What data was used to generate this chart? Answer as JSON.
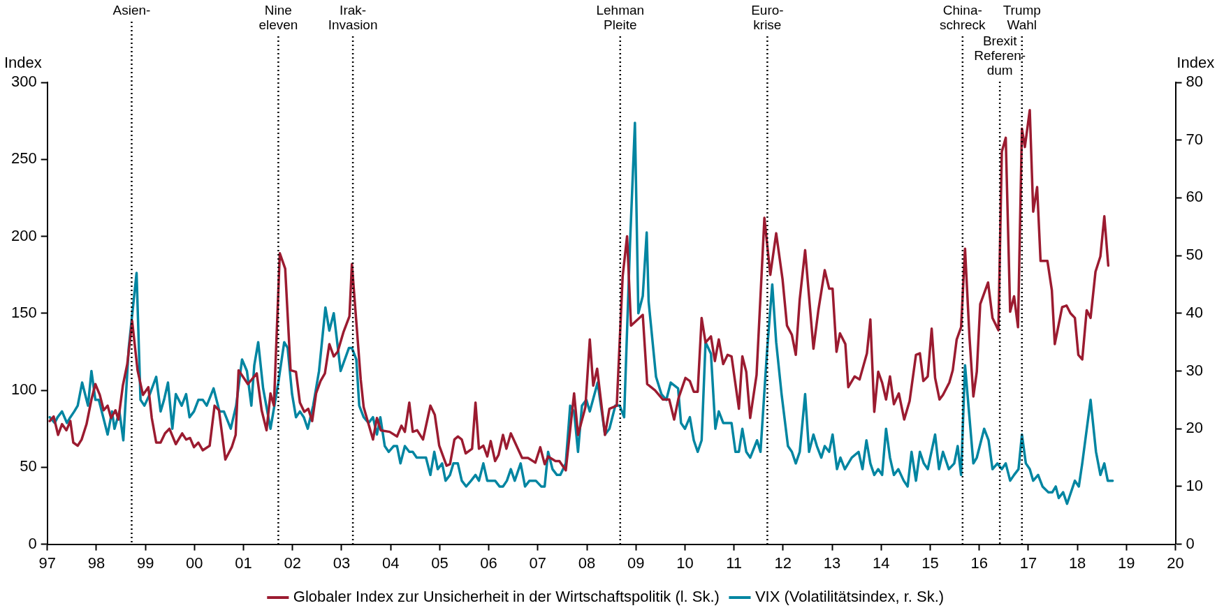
{
  "chart_data": {
    "type": "line",
    "ylabel": "Index",
    "y2label": "Index",
    "xlim": [
      1997,
      2020
    ],
    "xticks": [
      {
        "value": 1997,
        "label": "97"
      },
      {
        "value": 1998,
        "label": "98"
      },
      {
        "value": 1999,
        "label": "99"
      },
      {
        "value": 2000,
        "label": "00"
      },
      {
        "value": 2001,
        "label": "01"
      },
      {
        "value": 2002,
        "label": "02"
      },
      {
        "value": 2003,
        "label": "03"
      },
      {
        "value": 2004,
        "label": "04"
      },
      {
        "value": 2005,
        "label": "05"
      },
      {
        "value": 2006,
        "label": "06"
      },
      {
        "value": 2007,
        "label": "07"
      },
      {
        "value": 2008,
        "label": "08"
      },
      {
        "value": 2009,
        "label": "09"
      },
      {
        "value": 2010,
        "label": "10"
      },
      {
        "value": 2011,
        "label": "11"
      },
      {
        "value": 2012,
        "label": "12"
      },
      {
        "value": 2013,
        "label": "13"
      },
      {
        "value": 2014,
        "label": "14"
      },
      {
        "value": 2015,
        "label": "15"
      },
      {
        "value": 2016,
        "label": "16"
      },
      {
        "value": 2017,
        "label": "17"
      },
      {
        "value": 2018,
        "label": "18"
      },
      {
        "value": 2019,
        "label": "19"
      },
      {
        "value": 2020,
        "label": "20"
      }
    ],
    "ylim": [
      0,
      300
    ],
    "yticks": [
      0,
      50,
      100,
      150,
      200,
      250,
      300
    ],
    "y2lim": [
      0,
      80
    ],
    "y2ticks": [
      0,
      10,
      20,
      30,
      40,
      50,
      60,
      70,
      80
    ],
    "grid": false,
    "legend": "bottom",
    "series": [
      {
        "name": "Globaler Index zur Unsicherheit in der Wirtschaftspolitik (l. Sk.)",
        "color": "#9b1b30",
        "x": [
          1997.05,
          1997.13,
          1997.22,
          1997.3,
          1997.39,
          1997.47,
          1997.53,
          1997.62,
          1997.7,
          1997.8,
          1997.9,
          1997.98,
          1998.07,
          1998.15,
          1998.23,
          1998.3,
          1998.39,
          1998.45,
          1998.54,
          1998.63,
          1998.73,
          1998.84,
          1998.95,
          1999.06,
          1999.13,
          1999.22,
          1999.31,
          1999.4,
          1999.49,
          1999.62,
          1999.75,
          1999.83,
          1999.91,
          1999.99,
          2000.08,
          2000.17,
          2000.31,
          2000.41,
          2000.5,
          2000.63,
          2000.76,
          2000.84,
          2000.9,
          2001.09,
          2001.27,
          2001.37,
          2001.47,
          2001.55,
          2001.62,
          2001.74,
          2001.85,
          2001.96,
          2002.07,
          2002.15,
          2002.24,
          2002.32,
          2002.4,
          2002.48,
          2002.57,
          2002.66,
          2002.75,
          2002.84,
          2002.92,
          2003.04,
          2003.16,
          2003.21,
          2003.39,
          2003.45,
          2003.64,
          2003.72,
          2003.8,
          2003.98,
          2004.13,
          2004.22,
          2004.29,
          2004.38,
          2004.45,
          2004.54,
          2004.66,
          2004.81,
          2004.9,
          2004.99,
          2005.14,
          2005.21,
          2005.3,
          2005.37,
          2005.45,
          2005.53,
          2005.66,
          2005.73,
          2005.8,
          2005.89,
          2005.97,
          2006.04,
          2006.13,
          2006.2,
          2006.29,
          2006.36,
          2006.45,
          2006.68,
          2006.8,
          2006.95,
          2007.05,
          2007.14,
          2007.21,
          2007.36,
          2007.44,
          2007.57,
          2007.74,
          2007.82,
          2007.97,
          2008.06,
          2008.13,
          2008.21,
          2008.37,
          2008.46,
          2008.61,
          2008.73,
          2008.82,
          2008.9,
          2009.14,
          2009.23,
          2009.39,
          2009.55,
          2009.68,
          2009.78,
          2009.87,
          2010.01,
          2010.1,
          2010.18,
          2010.26,
          2010.34,
          2010.42,
          2010.53,
          2010.61,
          2010.69,
          2010.78,
          2010.87,
          2010.95,
          2011.1,
          2011.17,
          2011.25,
          2011.33,
          2011.46,
          2011.62,
          2011.74,
          2011.86,
          2011.99,
          2012.08,
          2012.18,
          2012.26,
          2012.34,
          2012.45,
          2012.53,
          2012.62,
          2012.72,
          2012.85,
          2012.94,
          2013.01,
          2013.09,
          2013.16,
          2013.27,
          2013.33,
          2013.46,
          2013.56,
          2013.71,
          2013.78,
          2013.86,
          2013.94,
          2014.02,
          2014.1,
          2014.18,
          2014.26,
          2014.36,
          2014.47,
          2014.58,
          2014.71,
          2014.79,
          2014.86,
          2014.95,
          2015.03,
          2015.1,
          2015.19,
          2015.26,
          2015.39,
          2015.46,
          2015.54,
          2015.63,
          2015.71,
          2015.8,
          2015.88,
          2015.95,
          2016.02,
          2016.18,
          2016.27,
          2016.39,
          2016.46,
          2016.54,
          2016.63,
          2016.71,
          2016.79,
          2016.87,
          2016.93,
          2017.03,
          2017.1,
          2017.18,
          2017.25,
          2017.39,
          2017.48,
          2017.54,
          2017.69,
          2017.78,
          2017.86,
          2017.95,
          2018.02,
          2018.1,
          2018.19,
          2018.27,
          2018.37,
          2018.47,
          2018.55,
          2018.63
        ],
        "values": [
          80,
          83,
          71,
          78,
          74,
          80,
          66,
          64,
          68,
          78,
          94,
          104,
          97,
          87,
          90,
          82,
          87,
          81,
          103,
          117,
          145,
          113,
          97,
          102,
          82,
          66,
          66,
          72,
          75,
          65,
          72,
          68,
          69,
          63,
          66,
          61,
          64,
          90,
          87,
          55,
          63,
          71,
          113,
          104,
          111,
          87,
          74,
          98,
          90,
          189,
          179,
          113,
          112,
          92,
          86,
          88,
          80,
          98,
          106,
          111,
          130,
          122,
          125,
          138,
          148,
          182,
          107,
          89,
          68,
          82,
          74,
          73,
          70,
          77,
          73,
          92,
          73,
          74,
          68,
          90,
          84,
          64,
          51,
          52,
          68,
          70,
          68,
          59,
          62,
          92,
          62,
          64,
          57,
          67,
          54,
          58,
          71,
          62,
          72,
          56,
          56,
          53,
          63,
          52,
          57,
          54,
          54,
          48,
          98,
          71,
          89,
          133,
          103,
          114,
          71,
          88,
          90,
          174,
          200,
          142,
          149,
          104,
          100,
          94,
          94,
          81,
          95,
          108,
          106,
          99,
          99,
          147,
          131,
          135,
          119,
          133,
          117,
          123,
          122,
          88,
          122,
          112,
          82,
          110,
          212,
          175,
          202,
          172,
          142,
          136,
          123,
          159,
          191,
          161,
          127,
          152,
          178,
          166,
          166,
          125,
          137,
          130,
          102,
          109,
          107,
          124,
          146,
          86,
          112,
          105,
          94,
          109,
          91,
          98,
          81,
          93,
          123,
          124,
          106,
          109,
          140,
          108,
          94,
          97,
          105,
          113,
          133,
          141,
          192,
          135,
          96,
          112,
          156,
          170,
          147,
          139,
          255,
          264,
          151,
          161,
          141,
          270,
          258,
          282,
          216,
          232,
          184,
          184,
          165,
          130,
          154,
          155,
          150,
          147,
          123,
          120,
          152,
          147,
          177,
          187,
          213,
          181
        ]
      },
      {
        "name": "VIX (Volatilitätsindex, r. Sk.)",
        "color": "#0085a1",
        "axis": "y2",
        "x": [
          1997.05,
          1997.15,
          1997.21,
          1997.3,
          1997.4,
          1997.47,
          1997.55,
          1997.62,
          1997.71,
          1997.83,
          1997.9,
          1997.98,
          1998.05,
          1998.14,
          1998.23,
          1998.32,
          1998.37,
          1998.47,
          1998.55,
          1998.66,
          1998.82,
          1998.9,
          1998.98,
          1999.09,
          1999.22,
          1999.31,
          1999.38,
          1999.46,
          1999.55,
          1999.62,
          1999.74,
          1999.83,
          1999.9,
          1999.99,
          2000.08,
          2000.17,
          2000.25,
          2000.39,
          2000.51,
          2000.6,
          2000.74,
          2000.85,
          2000.97,
          2001.07,
          2001.16,
          2001.22,
          2001.3,
          2001.4,
          2001.55,
          2001.71,
          2001.83,
          2001.9,
          2001.99,
          2002.07,
          2002.15,
          2002.23,
          2002.31,
          2002.42,
          2002.54,
          2002.67,
          2002.75,
          2002.84,
          2002.98,
          2003.15,
          2003.21,
          2003.3,
          2003.36,
          2003.45,
          2003.55,
          2003.64,
          2003.72,
          2003.79,
          2003.88,
          2003.96,
          2004.06,
          2004.13,
          2004.2,
          2004.29,
          2004.38,
          2004.45,
          2004.53,
          2004.72,
          2004.81,
          2004.89,
          2004.96,
          2005.05,
          2005.12,
          2005.21,
          2005.28,
          2005.37,
          2005.45,
          2005.54,
          2005.64,
          2005.73,
          2005.8,
          2005.89,
          2005.97,
          2006.06,
          2006.13,
          2006.22,
          2006.29,
          2006.37,
          2006.45,
          2006.53,
          2006.65,
          2006.74,
          2006.83,
          2006.96,
          2007.07,
          2007.14,
          2007.21,
          2007.3,
          2007.39,
          2007.46,
          2007.57,
          2007.66,
          2007.74,
          2007.82,
          2007.9,
          2007.99,
          2008.06,
          2008.22,
          2008.37,
          2008.46,
          2008.58,
          2008.67,
          2008.76,
          2008.88,
          2008.98,
          2009.05,
          2009.14,
          2009.22,
          2009.26,
          2009.41,
          2009.52,
          2009.62,
          2009.71,
          2009.86,
          2009.92,
          2010,
          2010.1,
          2010.18,
          2010.26,
          2010.34,
          2010.42,
          2010.53,
          2010.62,
          2010.69,
          2010.78,
          2010.87,
          2010.95,
          2011.03,
          2011.1,
          2011.17,
          2011.25,
          2011.33,
          2011.47,
          2011.54,
          2011.67,
          2011.78,
          2011.86,
          2011.97,
          2012.1,
          2012.18,
          2012.26,
          2012.34,
          2012.45,
          2012.53,
          2012.62,
          2012.69,
          2012.78,
          2012.85,
          2012.94,
          2013.01,
          2013.1,
          2013.17,
          2013.26,
          2013.4,
          2013.54,
          2013.62,
          2013.7,
          2013.78,
          2013.86,
          2013.94,
          2014.02,
          2014.1,
          2014.18,
          2014.26,
          2014.35,
          2014.46,
          2014.54,
          2014.62,
          2014.71,
          2014.79,
          2014.87,
          2014.95,
          2015.1,
          2015.18,
          2015.26,
          2015.38,
          2015.49,
          2015.56,
          2015.63,
          2015.71,
          2015.8,
          2015.88,
          2015.95,
          2016.1,
          2016.19,
          2016.27,
          2016.37,
          2016.46,
          2016.54,
          2016.63,
          2016.71,
          2016.8,
          2016.87,
          2016.95,
          2017.03,
          2017.1,
          2017.2,
          2017.29,
          2017.41,
          2017.49,
          2017.56,
          2017.62,
          2017.71,
          2017.79,
          2017.95,
          2018.03,
          2018.1,
          2018.27,
          2018.38,
          2018.47,
          2018.55,
          2018.62,
          2018.72
        ],
        "values": [
          22,
          21,
          22,
          23,
          21,
          22,
          23,
          24,
          28,
          24,
          30,
          25,
          25,
          22,
          19,
          23,
          20,
          23,
          18,
          34,
          47,
          25,
          24,
          26,
          29,
          23,
          25,
          28,
          20,
          26,
          24,
          26,
          22,
          23,
          25,
          25,
          24,
          27,
          23,
          23,
          20,
          24,
          32,
          30,
          24,
          31,
          35,
          27,
          20,
          28,
          35,
          34,
          26,
          22,
          23,
          22,
          20,
          24,
          30,
          41,
          37,
          40,
          30,
          34,
          34,
          32,
          24,
          22,
          21,
          22,
          19,
          22,
          17,
          16,
          17,
          17,
          14,
          17,
          16,
          16,
          15,
          15,
          12,
          16,
          13,
          14,
          11,
          12,
          14,
          14,
          11,
          10,
          11,
          12,
          11,
          14,
          11,
          11,
          11,
          10,
          10,
          11,
          13,
          11,
          14,
          10,
          11,
          11,
          10,
          10,
          16,
          13,
          12,
          12,
          14,
          24,
          23,
          16,
          24,
          25,
          23,
          28,
          19,
          20,
          24,
          24,
          22,
          52,
          73,
          40,
          43,
          54,
          42,
          29,
          26,
          25,
          28,
          27,
          21,
          20,
          22,
          18,
          16,
          18,
          35,
          33,
          20,
          23,
          21,
          21,
          21,
          16,
          16,
          20,
          16,
          15,
          18,
          16,
          33,
          45,
          35,
          26,
          17,
          16,
          14,
          16,
          26,
          16,
          19,
          17,
          15,
          17,
          16,
          19,
          13,
          15,
          13,
          15,
          16,
          13,
          18,
          14,
          12,
          13,
          12,
          20,
          15,
          12,
          13,
          11,
          10,
          16,
          11,
          16,
          14,
          13,
          19,
          13,
          16,
          13,
          14,
          17,
          12,
          31,
          22,
          14,
          15,
          20,
          18,
          13,
          14,
          13,
          14,
          11,
          12,
          13,
          19,
          14,
          13,
          11,
          12,
          10,
          9,
          9,
          10,
          8,
          9,
          7,
          11,
          10,
          14,
          25,
          16,
          12,
          14,
          11,
          11
        ]
      }
    ],
    "ref_lines": [
      {
        "axis": "x",
        "value": 1998.72,
        "label": "Asien-",
        "line_style": "dotted",
        "color": "#000000"
      },
      {
        "axis": "x",
        "value": 2001.71,
        "label": "Nine\neleven",
        "line_style": "dotted",
        "color": "#000000"
      },
      {
        "axis": "x",
        "value": 2003.23,
        "label": "Irak-\nInvasion",
        "line_style": "dotted",
        "color": "#000000"
      },
      {
        "axis": "x",
        "value": 2008.68,
        "label": "Lehman\nPleite",
        "line_style": "dotted",
        "color": "#000000"
      },
      {
        "axis": "x",
        "value": 2011.68,
        "label": "Euro-\nkrise",
        "line_style": "dotted",
        "color": "#000000"
      },
      {
        "axis": "x",
        "value": 2015.66,
        "label": "China-\nschreck",
        "line_style": "dotted",
        "color": "#000000"
      },
      {
        "axis": "x",
        "value": 2016.87,
        "label": "Trump\nWahl",
        "line_style": "dotted",
        "color": "#000000"
      },
      {
        "axis": "x",
        "value": 2016.42,
        "label": "Brexit\nReferen-\ndum",
        "line_style": "dotted",
        "color": "#000000"
      }
    ]
  }
}
